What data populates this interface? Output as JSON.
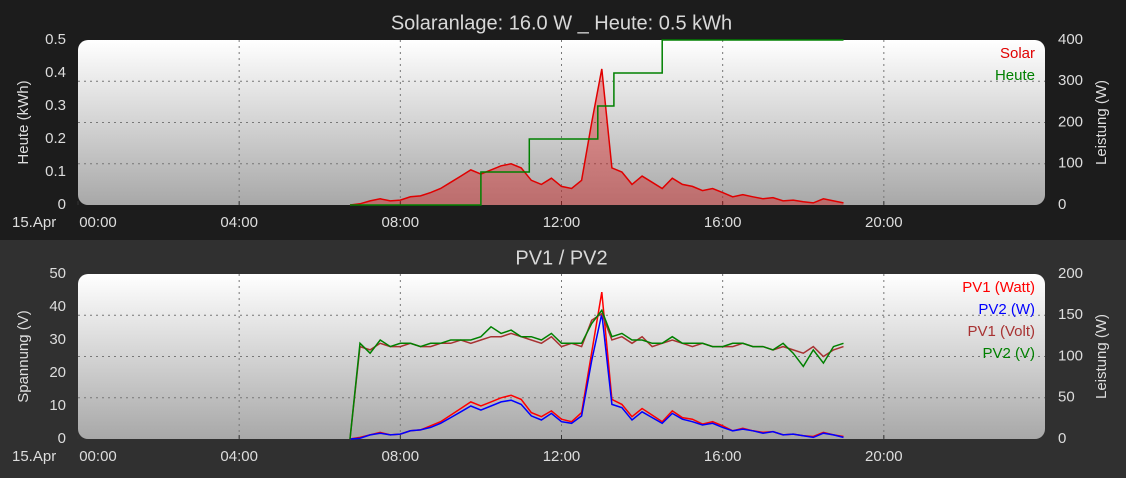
{
  "chart_data": [
    {
      "type": "line",
      "title": "Solaranlage: 16.0 W _ Heute: 0.5 kWh",
      "date_label": "15.Apr",
      "ylabel": "Heute (kWh)",
      "y2label": "Leistung (W)",
      "grid": true,
      "xlim": [
        0,
        24
      ],
      "xticks": [
        {
          "value": 0,
          "label": "00:00"
        },
        {
          "value": 4,
          "label": "04:00"
        },
        {
          "value": 8,
          "label": "08:00"
        },
        {
          "value": 12,
          "label": "12:00"
        },
        {
          "value": 16,
          "label": "16:00"
        },
        {
          "value": 20,
          "label": "20:00"
        }
      ],
      "ylim": [
        0,
        0.5
      ],
      "yticks": [
        0,
        0.1,
        0.2,
        0.3,
        0.4,
        0.5
      ],
      "y2lim": [
        0,
        400
      ],
      "y2ticks": [
        0,
        100,
        200,
        300,
        400
      ],
      "x": [
        6.75,
        7,
        7.25,
        7.5,
        7.75,
        8,
        8.25,
        8.5,
        8.75,
        9,
        9.25,
        9.5,
        9.75,
        10,
        10.25,
        10.5,
        10.75,
        11,
        11.25,
        11.5,
        11.75,
        12,
        12.25,
        12.5,
        12.75,
        13,
        13.25,
        13.5,
        13.75,
        14,
        14.25,
        14.5,
        14.75,
        15,
        15.25,
        15.5,
        15.75,
        16,
        16.25,
        16.5,
        16.75,
        17,
        17.25,
        17.5,
        17.75,
        18,
        18.25,
        18.5,
        18.75,
        19
      ],
      "series": [
        {
          "name": "Solar",
          "color": "#e00000",
          "axis": "y2",
          "area": true,
          "values": [
            0,
            3,
            10,
            15,
            10,
            12,
            20,
            22,
            30,
            40,
            55,
            70,
            85,
            75,
            85,
            95,
            100,
            90,
            60,
            50,
            65,
            45,
            40,
            60,
            200,
            330,
            90,
            80,
            50,
            70,
            55,
            40,
            65,
            50,
            45,
            35,
            40,
            30,
            20,
            25,
            20,
            15,
            18,
            10,
            12,
            8,
            5,
            15,
            10,
            5
          ]
        },
        {
          "name": "Heute",
          "color": "#008000",
          "axis": "y",
          "x": [
            6.75,
            10,
            10,
            11.2,
            11.2,
            12.9,
            12.9,
            13.3,
            13.3,
            14.5,
            14.5,
            19
          ],
          "values": [
            0,
            0,
            0.1,
            0.1,
            0.2,
            0.2,
            0.3,
            0.3,
            0.4,
            0.4,
            0.5,
            0.5
          ]
        }
      ]
    },
    {
      "type": "line",
      "title": "PV1 / PV2",
      "date_label": "15.Apr",
      "ylabel": "Spannung (V)",
      "y2label": "Leistung (W)",
      "grid": true,
      "xlim": [
        0,
        24
      ],
      "xticks": [
        {
          "value": 0,
          "label": "00:00"
        },
        {
          "value": 4,
          "label": "04:00"
        },
        {
          "value": 8,
          "label": "08:00"
        },
        {
          "value": 12,
          "label": "12:00"
        },
        {
          "value": 16,
          "label": "16:00"
        },
        {
          "value": 20,
          "label": "20:00"
        }
      ],
      "ylim": [
        0,
        50
      ],
      "yticks": [
        0,
        10,
        20,
        30,
        40,
        50
      ],
      "y2lim": [
        0,
        200
      ],
      "y2ticks": [
        0,
        50,
        100,
        150,
        200
      ],
      "x": [
        6.75,
        7,
        7.25,
        7.5,
        7.75,
        8,
        8.25,
        8.5,
        8.75,
        9,
        9.25,
        9.5,
        9.75,
        10,
        10.25,
        10.5,
        10.75,
        11,
        11.25,
        11.5,
        11.75,
        12,
        12.25,
        12.5,
        12.75,
        13,
        13.25,
        13.5,
        13.75,
        14,
        14.25,
        14.5,
        14.75,
        15,
        15.25,
        15.5,
        15.75,
        16,
        16.25,
        16.5,
        16.75,
        17,
        17.25,
        17.5,
        17.75,
        18,
        18.25,
        18.5,
        18.75,
        19
      ],
      "series": [
        {
          "name": "PV1 (Watt)",
          "color": "#ff0000",
          "axis": "y2",
          "values": [
            0,
            2,
            5,
            8,
            5,
            6,
            10,
            11,
            16,
            21,
            29,
            37,
            45,
            40,
            45,
            50,
            53,
            48,
            32,
            27,
            34,
            24,
            21,
            32,
            105,
            178,
            48,
            42,
            27,
            37,
            29,
            21,
            34,
            26,
            24,
            18,
            21,
            16,
            10,
            13,
            10,
            8,
            9,
            5,
            6,
            4,
            3,
            8,
            5,
            3
          ]
        },
        {
          "name": "PV2 (W)",
          "color": "#0000ff",
          "axis": "y2",
          "values": [
            0,
            1,
            5,
            7,
            5,
            6,
            10,
            11,
            14,
            19,
            26,
            33,
            40,
            35,
            40,
            45,
            47,
            42,
            28,
            23,
            31,
            21,
            19,
            28,
            95,
            152,
            42,
            38,
            23,
            33,
            26,
            19,
            31,
            24,
            21,
            17,
            19,
            14,
            10,
            12,
            10,
            7,
            9,
            5,
            6,
            4,
            2,
            7,
            5,
            2
          ]
        },
        {
          "name": "PV1 (Volt)",
          "color": "#a83232",
          "axis": "y",
          "values": [
            0,
            28,
            27,
            29,
            28,
            28,
            29,
            28,
            28,
            29,
            29,
            30,
            29,
            30,
            31,
            31,
            32,
            31,
            30,
            29,
            31,
            28,
            29,
            28,
            36,
            38,
            30,
            31,
            29,
            31,
            28,
            29,
            30,
            29,
            28,
            29,
            28,
            28,
            28,
            29,
            28,
            28,
            27,
            28,
            27,
            26,
            28,
            25,
            27,
            28
          ]
        },
        {
          "name": "PV2 (V)",
          "color": "#008000",
          "axis": "y",
          "values": [
            0,
            29,
            26,
            30,
            28,
            29,
            29,
            28,
            29,
            29,
            30,
            30,
            30,
            31,
            34,
            32,
            33,
            31,
            31,
            30,
            32,
            29,
            29,
            29,
            35,
            39,
            31,
            32,
            30,
            30,
            29,
            29,
            31,
            29,
            29,
            29,
            28,
            28,
            29,
            29,
            28,
            28,
            27,
            29,
            26,
            22,
            27,
            23,
            28,
            29
          ]
        }
      ]
    }
  ]
}
